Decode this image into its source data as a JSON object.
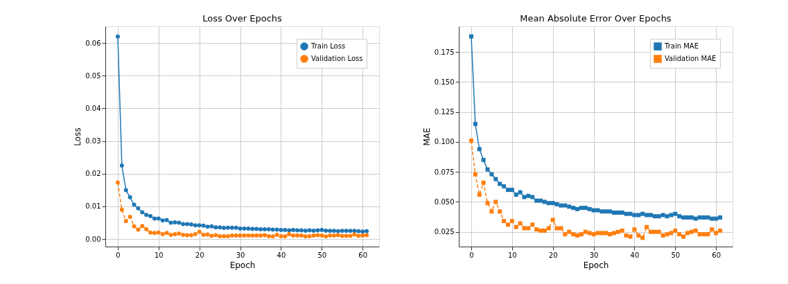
{
  "chart_data": [
    {
      "type": "line",
      "title": "Loss Over Epochs",
      "xlabel": "Epoch",
      "ylabel": "Loss",
      "grid": true,
      "legend": "top right",
      "marker": "circle",
      "x": [
        0,
        1,
        2,
        3,
        4,
        5,
        6,
        7,
        8,
        9,
        10,
        11,
        12,
        13,
        14,
        15,
        16,
        17,
        18,
        19,
        20,
        21,
        22,
        23,
        24,
        25,
        26,
        27,
        28,
        29,
        30,
        31,
        32,
        33,
        34,
        35,
        36,
        37,
        38,
        39,
        40,
        41,
        42,
        43,
        44,
        45,
        46,
        47,
        48,
        49,
        50,
        51,
        52,
        53,
        54,
        55,
        56,
        57,
        58,
        59,
        60,
        61
      ],
      "xlim": [
        -3.05,
        64.05
      ],
      "xticks": [
        0,
        10,
        20,
        30,
        40,
        50,
        60
      ],
      "ylim": [
        -0.0023,
        0.0651
      ],
      "yticks": [
        {
          "value": 0,
          "label": "0.00"
        },
        {
          "value": 0.01,
          "label": "0.01"
        },
        {
          "value": 0.02,
          "label": "0.02"
        },
        {
          "value": 0.03,
          "label": "0.03"
        },
        {
          "value": 0.04,
          "label": "0.04"
        },
        {
          "value": 0.05,
          "label": "0.05"
        },
        {
          "value": 0.06,
          "label": "0.06"
        }
      ],
      "series": [
        {
          "name": "Train Loss",
          "color": "#1f77b4",
          "line_style": "solid",
          "values": [
            0.062,
            0.0225,
            0.015,
            0.0128,
            0.0105,
            0.0094,
            0.0082,
            0.0074,
            0.007,
            0.0063,
            0.0063,
            0.0057,
            0.0058,
            0.005,
            0.0051,
            0.005,
            0.0046,
            0.0046,
            0.0045,
            0.0042,
            0.0042,
            0.0041,
            0.0038,
            0.0039,
            0.0036,
            0.0036,
            0.0034,
            0.0035,
            0.0035,
            0.0035,
            0.0032,
            0.0032,
            0.0032,
            0.0031,
            0.0031,
            0.003,
            0.003,
            0.003,
            0.0029,
            0.0029,
            0.0028,
            0.0028,
            0.0027,
            0.0028,
            0.0027,
            0.0027,
            0.0026,
            0.0027,
            0.0026,
            0.0027,
            0.0028,
            0.0026,
            0.0025,
            0.0025,
            0.0024,
            0.0025,
            0.0025,
            0.0025,
            0.0025,
            0.0024,
            0.0023,
            0.0024
          ]
        },
        {
          "name": "Validation Loss",
          "color": "#ff7f0e",
          "line_style": "dashed",
          "values": [
            0.0173,
            0.009,
            0.0055,
            0.0068,
            0.0039,
            0.0029,
            0.004,
            0.003,
            0.002,
            0.0019,
            0.002,
            0.0015,
            0.0019,
            0.0013,
            0.0015,
            0.0017,
            0.0013,
            0.0012,
            0.0012,
            0.0015,
            0.0022,
            0.0013,
            0.0014,
            0.001,
            0.0012,
            0.0009,
            0.0009,
            0.0009,
            0.0011,
            0.0011,
            0.0011,
            0.0011,
            0.0011,
            0.0011,
            0.0011,
            0.0011,
            0.0012,
            0.0009,
            0.0008,
            0.0013,
            0.0009,
            0.0008,
            0.0015,
            0.0011,
            0.0011,
            0.0011,
            0.0008,
            0.0009,
            0.0011,
            0.0012,
            0.0011,
            0.0008,
            0.0011,
            0.0011,
            0.0012,
            0.001,
            0.001,
            0.001,
            0.0014,
            0.001,
            0.0011,
            0.0012
          ]
        }
      ]
    },
    {
      "type": "line",
      "title": "Mean Absolute Error Over Epochs",
      "xlabel": "Epoch",
      "ylabel": "MAE",
      "grid": true,
      "legend": "top right",
      "marker": "square",
      "x": [
        0,
        1,
        2,
        3,
        4,
        5,
        6,
        7,
        8,
        9,
        10,
        11,
        12,
        13,
        14,
        15,
        16,
        17,
        18,
        19,
        20,
        21,
        22,
        23,
        24,
        25,
        26,
        27,
        28,
        29,
        30,
        31,
        32,
        33,
        34,
        35,
        36,
        37,
        38,
        39,
        40,
        41,
        42,
        43,
        44,
        45,
        46,
        47,
        48,
        49,
        50,
        51,
        52,
        53,
        54,
        55,
        56,
        57,
        58,
        59,
        60,
        61
      ],
      "xlim": [
        -3.05,
        64.05
      ],
      "xticks": [
        0,
        10,
        20,
        30,
        40,
        50,
        60
      ],
      "ylim": [
        0.0127,
        0.1964
      ],
      "yticks": [
        0.025,
        {
          "value": 0.05,
          "label": "0.050"
        },
        0.075,
        {
          "value": 0.1,
          "label": "0.100"
        },
        0.125,
        {
          "value": 0.15,
          "label": "0.150"
        },
        0.175
      ],
      "series": [
        {
          "name": "Train MAE",
          "color": "#1f77b4",
          "line_style": "solid",
          "values": [
            0.188,
            0.115,
            0.094,
            0.085,
            0.077,
            0.073,
            0.069,
            0.065,
            0.063,
            0.06,
            0.06,
            0.056,
            0.058,
            0.054,
            0.055,
            0.054,
            0.051,
            0.051,
            0.05,
            0.049,
            0.049,
            0.048,
            0.047,
            0.047,
            0.046,
            0.045,
            0.044,
            0.045,
            0.045,
            0.044,
            0.043,
            0.043,
            0.042,
            0.042,
            0.042,
            0.041,
            0.041,
            0.041,
            0.04,
            0.04,
            0.039,
            0.039,
            0.04,
            0.039,
            0.039,
            0.038,
            0.038,
            0.039,
            0.038,
            0.039,
            0.04,
            0.038,
            0.037,
            0.037,
            0.037,
            0.036,
            0.037,
            0.037,
            0.037,
            0.036,
            0.036,
            0.037
          ]
        },
        {
          "name": "Validation MAE",
          "color": "#ff7f0e",
          "line_style": "dashed",
          "values": [
            0.101,
            0.073,
            0.056,
            0.066,
            0.049,
            0.042,
            0.05,
            0.042,
            0.034,
            0.031,
            0.034,
            0.029,
            0.032,
            0.028,
            0.028,
            0.031,
            0.027,
            0.026,
            0.026,
            0.028,
            0.035,
            0.028,
            0.028,
            0.023,
            0.025,
            0.023,
            0.022,
            0.023,
            0.025,
            0.024,
            0.023,
            0.024,
            0.024,
            0.024,
            0.023,
            0.024,
            0.025,
            0.026,
            0.022,
            0.021,
            0.027,
            0.022,
            0.02,
            0.029,
            0.025,
            0.025,
            0.025,
            0.022,
            0.023,
            0.024,
            0.026,
            0.023,
            0.021,
            0.024,
            0.025,
            0.026,
            0.023,
            0.023,
            0.023,
            0.027,
            0.024,
            0.026
          ]
        }
      ]
    }
  ]
}
